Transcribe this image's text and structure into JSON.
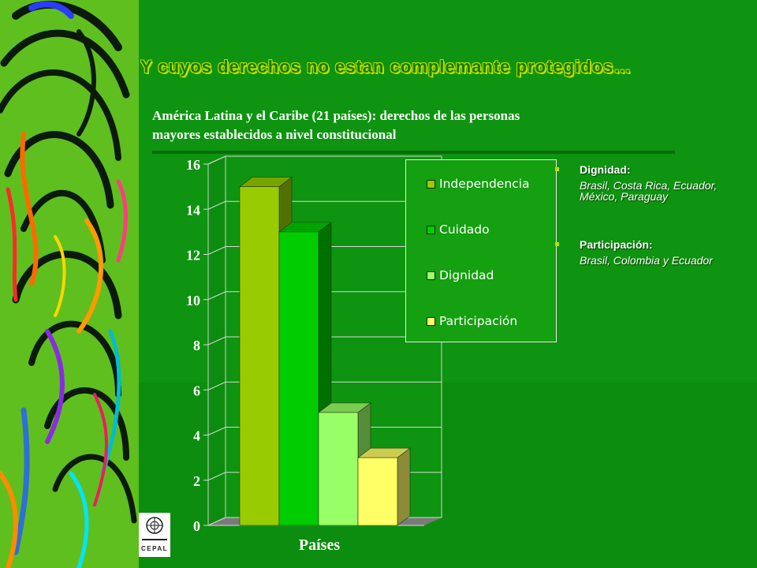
{
  "slide": {
    "title": "Y cuyos derechos no estan complemante protegidos…",
    "subtitle_line1": "América Latina y el Caribe (21 países): derechos de las personas",
    "subtitle_line2": "mayores establecidos a nivel constitucional"
  },
  "notes": [
    {
      "head": "Dignidad:",
      "body": "Brasil, Costa Rica, Ecuador, México, Paraguay"
    },
    {
      "head": "Participación:",
      "body": "Brasil, Colombia y Ecuador"
    }
  ],
  "logo": {
    "text": "CEPAL"
  },
  "colors": {
    "background": "#0e9410",
    "title": "#1a7a00",
    "title_outline": "#b7e000"
  },
  "chart_data": {
    "type": "bar",
    "categories": [
      "Países"
    ],
    "series": [
      {
        "name": "Independencia",
        "values": [
          15
        ],
        "color": "#99cc00"
      },
      {
        "name": "Cuidado",
        "values": [
          13
        ],
        "color": "#00cc00"
      },
      {
        "name": "Dignidad",
        "values": [
          5
        ],
        "color": "#99ff66"
      },
      {
        "name": "Participación",
        "values": [
          3
        ],
        "color": "#ffff66"
      }
    ],
    "xlabel": "Países",
    "ylabel": "",
    "ylim": [
      0,
      16
    ],
    "yticks": [
      "0",
      "2",
      "4",
      "6",
      "8",
      "10",
      "12",
      "14",
      "16"
    ],
    "grid": true,
    "legend_position": "top-right",
    "style": "3d"
  }
}
